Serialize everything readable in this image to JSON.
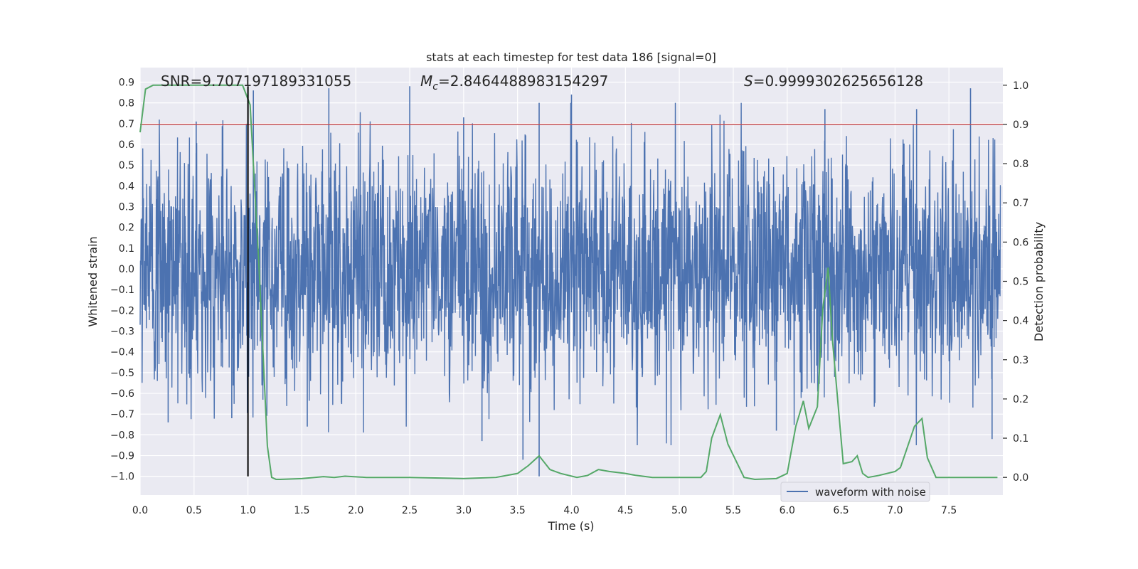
{
  "chart_data": {
    "type": "line",
    "title": "stats at each timestep for test data 186 [signal=0]",
    "xlabel": "Time (s)",
    "ylabel": "Whitened strain",
    "y2label": "Detection probability",
    "xlim": [
      0.0,
      8.0
    ],
    "ylim": [
      -1.09,
      0.97
    ],
    "y2lim": [
      -0.045,
      1.045
    ],
    "grid": true,
    "legend_position": "lower right",
    "x_ticks": [
      "0.0",
      "0.5",
      "1.0",
      "1.5",
      "2.0",
      "2.5",
      "3.0",
      "3.5",
      "4.0",
      "4.5",
      "5.0",
      "5.5",
      "6.0",
      "6.5",
      "7.0",
      "7.5"
    ],
    "y_ticks": [
      "0.9",
      "0.8",
      "0.7",
      "0.6",
      "0.5",
      "0.4",
      "0.3",
      "0.2",
      "0.1",
      "0.0",
      "−0.1",
      "−0.2",
      "−0.3",
      "−0.4",
      "−0.5",
      "−0.6",
      "−0.7",
      "−0.8",
      "−0.9",
      "−1.0"
    ],
    "y2_ticks": [
      "1.0",
      "0.9",
      "0.8",
      "0.7",
      "0.6",
      "0.5",
      "0.4",
      "0.3",
      "0.2",
      "0.1",
      "0.0"
    ],
    "annotations": {
      "snr": "SNR=9.707197189331055",
      "mc_symbol": "M",
      "mc_sub": "c",
      "mc_value": "=2.8464488983154297",
      "s_symbol": "S",
      "s_value": "=0.9999302625656128"
    },
    "threshold": {
      "y2": 0.9,
      "color": "#c44e52"
    },
    "marker_time": 1.0,
    "series": [
      {
        "name": "waveform with noise",
        "axis": "left",
        "color": "#4c72b0",
        "envelope": "dense noisy strain, bulk between about -0.4 and 0.4 with spikes up to about 0.88 and down to about -1.0",
        "notable_peaks": [
          [
            0.52,
            0.71
          ],
          [
            1.05,
            0.86
          ],
          [
            1.75,
            0.87
          ],
          [
            2.5,
            0.88
          ],
          [
            3.0,
            0.73
          ],
          [
            3.7,
            0.8
          ],
          [
            4.0,
            0.84
          ],
          [
            6.35,
            0.77
          ],
          [
            7.2,
            0.77
          ],
          [
            7.7,
            0.87
          ]
        ],
        "notable_troughs": [
          [
            0.26,
            -0.74
          ],
          [
            0.85,
            -0.72
          ],
          [
            1.55,
            -0.76
          ],
          [
            3.17,
            -0.83
          ],
          [
            3.55,
            -0.92
          ],
          [
            3.7,
            -1.0
          ],
          [
            5.9,
            -0.78
          ],
          [
            7.9,
            -0.82
          ]
        ]
      },
      {
        "name": "",
        "axis": "right",
        "color": "#55a868",
        "x": [
          0.0,
          0.05,
          0.12,
          0.3,
          0.5,
          0.7,
          0.95,
          1.02,
          1.1,
          1.18,
          1.22,
          1.26,
          1.3,
          1.5,
          1.7,
          1.8,
          1.9,
          2.1,
          2.5,
          3.0,
          3.3,
          3.5,
          3.6,
          3.7,
          3.8,
          3.9,
          4.05,
          4.15,
          4.25,
          4.35,
          4.5,
          4.6,
          4.75,
          5.0,
          5.2,
          5.25,
          5.3,
          5.38,
          5.45,
          5.6,
          5.7,
          5.9,
          6.0,
          6.08,
          6.15,
          6.2,
          6.28,
          6.33,
          6.38,
          6.42,
          6.52,
          6.6,
          6.65,
          6.7,
          6.75,
          6.85,
          7.0,
          7.05,
          7.1,
          7.18,
          7.25,
          7.3,
          7.38,
          7.45,
          7.6,
          7.95
        ],
        "values": [
          0.88,
          0.99,
          1.0,
          1.0,
          1.0,
          1.0,
          1.0,
          0.95,
          0.55,
          0.08,
          0.0,
          -0.005,
          -0.005,
          -0.003,
          0.002,
          0.0,
          0.003,
          0.0,
          0.0,
          -0.003,
          0.0,
          0.01,
          0.03,
          0.055,
          0.02,
          0.01,
          0.0,
          0.005,
          0.02,
          0.015,
          0.01,
          0.005,
          0.0,
          0.0,
          0.0,
          0.015,
          0.1,
          0.16,
          0.085,
          0.0,
          -0.005,
          -0.003,
          0.01,
          0.13,
          0.195,
          0.125,
          0.18,
          0.43,
          0.535,
          0.35,
          0.035,
          0.04,
          0.055,
          0.01,
          0.0,
          0.005,
          0.015,
          0.025,
          0.065,
          0.13,
          0.15,
          0.05,
          0.0,
          0.0,
          0.0,
          0.0
        ]
      }
    ]
  }
}
